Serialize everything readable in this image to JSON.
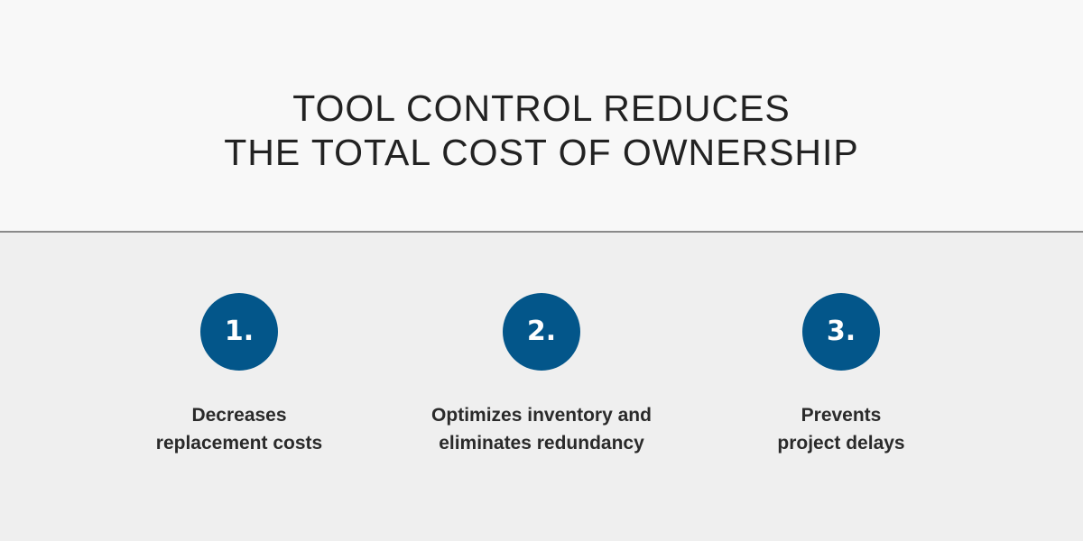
{
  "header": {
    "title_lines": [
      "TOOL CONTROL REDUCES",
      "THE TOTAL COST OF OWNERSHIP"
    ]
  },
  "colors": {
    "accent": "#03568a",
    "top_background": "#f8f8f8",
    "bottom_background": "#efefef"
  },
  "items": [
    {
      "number": "1.",
      "lines": [
        "Decreases",
        "replacement costs"
      ]
    },
    {
      "number": "2.",
      "lines": [
        "Optimizes inventory and",
        "eliminates redundancy"
      ]
    },
    {
      "number": "3.",
      "lines": [
        "Prevents",
        "project delays"
      ]
    }
  ]
}
